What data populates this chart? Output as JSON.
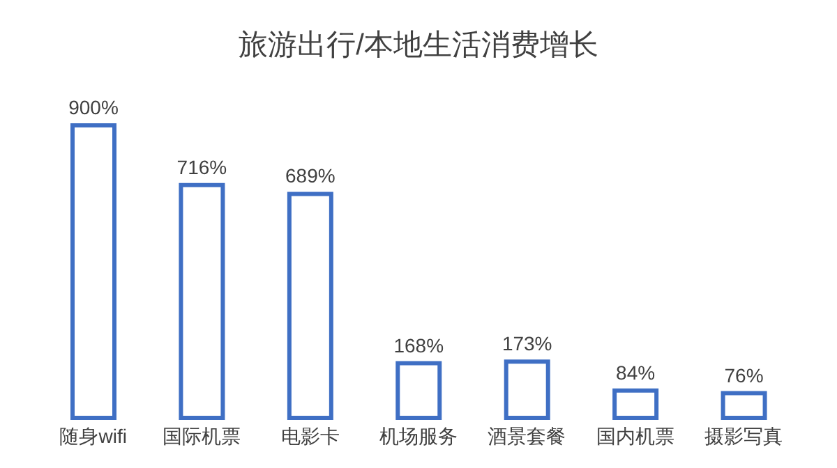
{
  "chart_data": {
    "type": "bar",
    "title": "旅游出行/本地生活消费增长",
    "categories": [
      "随身wifi",
      "国际机票",
      "电影卡",
      "机场服务",
      "酒景套餐",
      "国内机票",
      "摄影写真"
    ],
    "values": [
      900,
      716,
      689,
      168,
      173,
      84,
      76
    ],
    "value_labels": [
      "900%",
      "716%",
      "689%",
      "168%",
      "173%",
      "84%",
      "76%"
    ],
    "color": "#3f6fc4"
  }
}
